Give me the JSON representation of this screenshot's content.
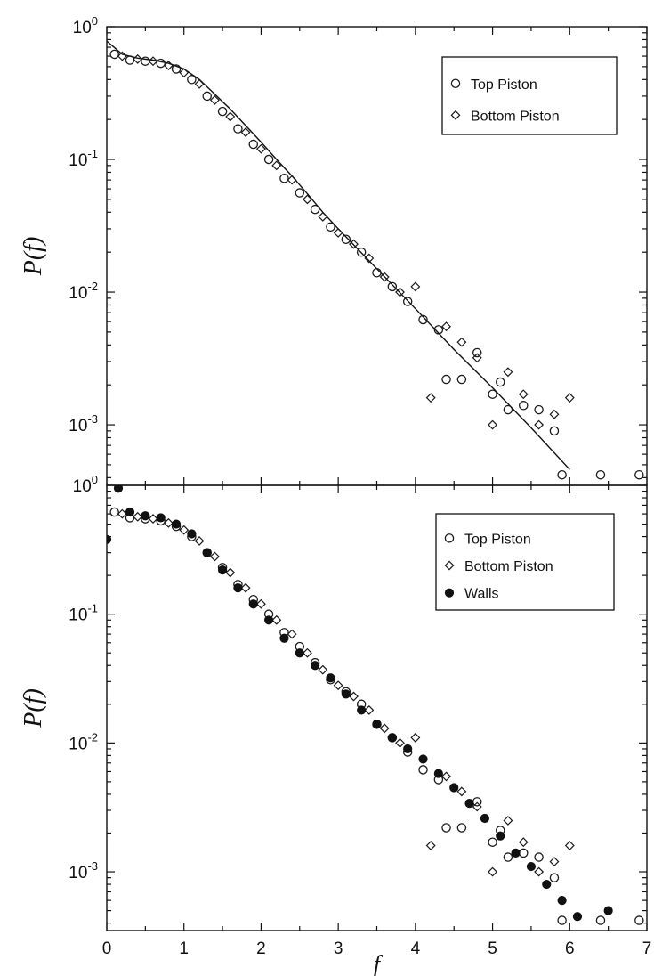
{
  "chart_data": [
    {
      "type": "scatter",
      "yscale": "log",
      "xlim": [
        0,
        7
      ],
      "ylim": [
        0.00035,
        1.0
      ],
      "xlabel": "",
      "ylabel": "P(f)",
      "legend_position": "top-right",
      "legend": [
        "Top Piston",
        "Bottom Piston"
      ],
      "y_tick_labels": [
        {
          "base": "10",
          "exp": "0"
        },
        {
          "base": "10",
          "exp": "-1"
        },
        {
          "base": "10",
          "exp": "-2"
        },
        {
          "base": "10",
          "exp": "-3"
        }
      ],
      "fit_line": {
        "x": [
          0,
          0.2,
          0.4,
          0.6,
          0.8,
          1.0,
          1.2,
          1.4,
          1.6,
          1.8,
          2.0,
          2.2,
          2.4,
          2.6,
          2.8,
          3.0,
          3.5,
          4.0,
          4.5,
          5.0,
          5.5,
          6.0
        ],
        "y": [
          0.78,
          0.62,
          0.58,
          0.56,
          0.53,
          0.48,
          0.4,
          0.31,
          0.24,
          0.18,
          0.135,
          0.1,
          0.075,
          0.055,
          0.04,
          0.03,
          0.015,
          0.0075,
          0.0037,
          0.0019,
          0.00095,
          0.00046
        ]
      },
      "series": [
        {
          "name": "Top Piston",
          "marker": "open-circle",
          "x": [
            0.1,
            0.3,
            0.5,
            0.7,
            0.9,
            1.1,
            1.3,
            1.5,
            1.7,
            1.9,
            2.1,
            2.3,
            2.5,
            2.7,
            2.9,
            3.1,
            3.3,
            3.5,
            3.7,
            3.9,
            4.1,
            4.3,
            4.4,
            4.6,
            4.8,
            5.0,
            5.1,
            5.2,
            5.4,
            5.6,
            5.8,
            5.9,
            6.4,
            6.9
          ],
          "y": [
            0.62,
            0.56,
            0.55,
            0.53,
            0.48,
            0.4,
            0.3,
            0.23,
            0.17,
            0.13,
            0.1,
            0.072,
            0.056,
            0.042,
            0.031,
            0.025,
            0.02,
            0.014,
            0.011,
            0.0085,
            0.0062,
            0.0052,
            0.0022,
            0.0022,
            0.0035,
            0.0017,
            0.0021,
            0.0013,
            0.0014,
            0.0013,
            0.0009,
            0.00042,
            0.00042,
            0.00042
          ]
        },
        {
          "name": "Bottom Piston",
          "marker": "open-diamond",
          "x": [
            0.2,
            0.4,
            0.6,
            0.8,
            1.0,
            1.2,
            1.4,
            1.6,
            1.8,
            2.0,
            2.2,
            2.4,
            2.6,
            2.8,
            3.0,
            3.2,
            3.4,
            3.6,
            3.8,
            4.0,
            4.2,
            4.4,
            4.6,
            4.8,
            5.0,
            5.2,
            5.4,
            5.6,
            5.8,
            6.0
          ],
          "y": [
            0.6,
            0.57,
            0.55,
            0.51,
            0.45,
            0.37,
            0.28,
            0.21,
            0.16,
            0.12,
            0.09,
            0.07,
            0.05,
            0.037,
            0.028,
            0.023,
            0.018,
            0.013,
            0.01,
            0.011,
            0.0016,
            0.0055,
            0.0042,
            0.0032,
            0.001,
            0.0025,
            0.0017,
            0.001,
            0.0012,
            0.0016
          ]
        }
      ]
    },
    {
      "type": "scatter",
      "yscale": "log",
      "xlim": [
        0,
        7
      ],
      "ylim": [
        0.00035,
        1.0
      ],
      "xlabel": "f",
      "ylabel": "P(f)",
      "legend_position": "top-right",
      "legend": [
        "Top Piston",
        "Bottom Piston",
        "Walls"
      ],
      "x_ticks": [
        "0",
        "1",
        "2",
        "3",
        "4",
        "5",
        "6",
        "7"
      ],
      "y_tick_labels": [
        {
          "base": "10",
          "exp": "0"
        },
        {
          "base": "10",
          "exp": "-1"
        },
        {
          "base": "10",
          "exp": "-2"
        },
        {
          "base": "10",
          "exp": "-3"
        }
      ],
      "series": [
        {
          "name": "Top Piston",
          "marker": "open-circle",
          "x": [
            0.1,
            0.3,
            0.5,
            0.7,
            0.9,
            1.1,
            1.3,
            1.5,
            1.7,
            1.9,
            2.1,
            2.3,
            2.5,
            2.7,
            2.9,
            3.1,
            3.3,
            3.5,
            3.7,
            3.9,
            4.1,
            4.3,
            4.4,
            4.6,
            4.8,
            5.0,
            5.1,
            5.2,
            5.4,
            5.6,
            5.8,
            5.9,
            6.4,
            6.9
          ],
          "y": [
            0.62,
            0.56,
            0.55,
            0.53,
            0.48,
            0.4,
            0.3,
            0.23,
            0.17,
            0.13,
            0.1,
            0.072,
            0.056,
            0.042,
            0.031,
            0.025,
            0.02,
            0.014,
            0.011,
            0.0085,
            0.0062,
            0.0052,
            0.0022,
            0.0022,
            0.0035,
            0.0017,
            0.0021,
            0.0013,
            0.0014,
            0.0013,
            0.0009,
            0.00042,
            0.00042,
            0.00042
          ]
        },
        {
          "name": "Bottom Piston",
          "marker": "open-diamond",
          "x": [
            0.2,
            0.4,
            0.6,
            0.8,
            1.0,
            1.2,
            1.4,
            1.6,
            1.8,
            2.0,
            2.2,
            2.4,
            2.6,
            2.8,
            3.0,
            3.2,
            3.4,
            3.6,
            3.8,
            4.0,
            4.2,
            4.4,
            4.6,
            4.8,
            5.0,
            5.2,
            5.4,
            5.6,
            5.8,
            6.0
          ],
          "y": [
            0.6,
            0.57,
            0.55,
            0.51,
            0.45,
            0.37,
            0.28,
            0.21,
            0.16,
            0.12,
            0.09,
            0.07,
            0.05,
            0.037,
            0.028,
            0.023,
            0.018,
            0.013,
            0.01,
            0.011,
            0.0016,
            0.0055,
            0.0042,
            0.0032,
            0.001,
            0.0025,
            0.0017,
            0.001,
            0.0012,
            0.0016
          ]
        },
        {
          "name": "Walls",
          "marker": "filled-circle",
          "x": [
            0.0,
            0.15,
            0.3,
            0.5,
            0.7,
            0.9,
            1.1,
            1.3,
            1.5,
            1.7,
            1.9,
            2.1,
            2.3,
            2.5,
            2.7,
            2.9,
            3.1,
            3.3,
            3.5,
            3.7,
            3.9,
            4.1,
            4.3,
            4.5,
            4.7,
            4.9,
            5.1,
            5.3,
            5.5,
            5.7,
            5.9,
            6.1,
            6.5
          ],
          "y": [
            0.38,
            0.95,
            0.62,
            0.58,
            0.56,
            0.5,
            0.42,
            0.3,
            0.22,
            0.16,
            0.12,
            0.09,
            0.065,
            0.05,
            0.04,
            0.032,
            0.024,
            0.018,
            0.014,
            0.011,
            0.009,
            0.0075,
            0.0058,
            0.0045,
            0.0034,
            0.0026,
            0.0019,
            0.0014,
            0.0011,
            0.0008,
            0.0006,
            0.00045,
            0.0005
          ]
        }
      ]
    }
  ]
}
